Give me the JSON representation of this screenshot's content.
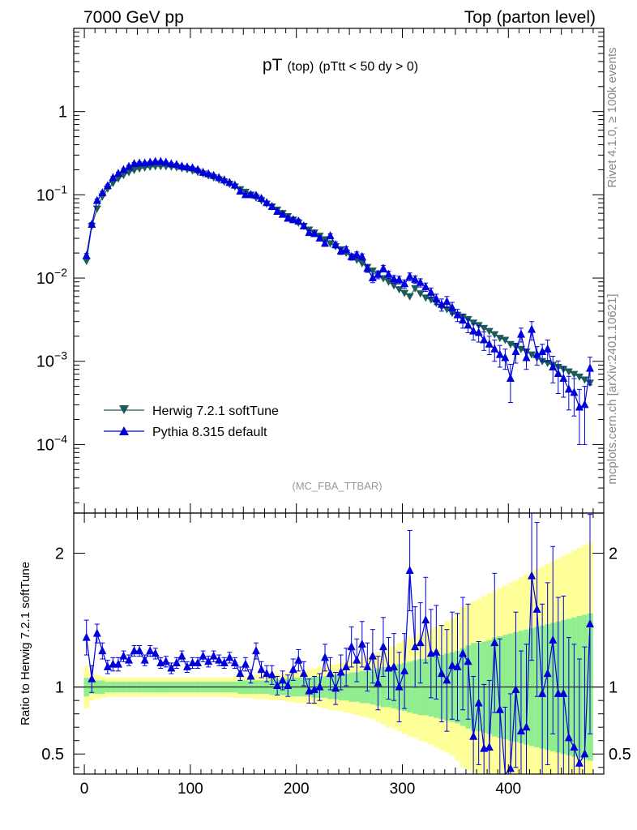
{
  "header": {
    "left": "7000 GeV pp",
    "right": "Top (parton level)"
  },
  "title": {
    "main": "pT",
    "sub": "(top)",
    "cut": "(pTtt < 50 dy > 0)"
  },
  "side_labels": {
    "rivet": "Rivet 4.1.0, ≥ 100k events",
    "mcplots": "mcplots.cern.ch [arXiv:2401.10621]"
  },
  "analysis_tag": "(MC_FBA_TTBAR)",
  "ratio_ylabel": "Ratio to Herwig 7.2.1 softTune",
  "colors": {
    "herwig": "#1d5b5b",
    "pythia": "#0000dd",
    "band_inner": "#90ee90",
    "band_outer": "#ffff99"
  },
  "chart_data": [
    {
      "type": "line",
      "scale": "log",
      "x": [
        2,
        7,
        12,
        17,
        22,
        27,
        32,
        37,
        42,
        47,
        52,
        57,
        62,
        67,
        72,
        77,
        82,
        87,
        92,
        97,
        102,
        107,
        112,
        117,
        122,
        127,
        132,
        137,
        142,
        147,
        152,
        157,
        162,
        167,
        172,
        177,
        182,
        187,
        192,
        197,
        202,
        207,
        212,
        217,
        222,
        227,
        232,
        237,
        242,
        247,
        252,
        257,
        262,
        267,
        272,
        277,
        282,
        287,
        292,
        297,
        302,
        307,
        312,
        317,
        322,
        327,
        332,
        337,
        342,
        347,
        352,
        357,
        362,
        367,
        372,
        377,
        382,
        387,
        392,
        397,
        402,
        407,
        412,
        417,
        422,
        427,
        432,
        437,
        442,
        447,
        452,
        457,
        462,
        467,
        472,
        477
      ],
      "series": [
        {
          "name": "Herwig 7.2.1 softTune",
          "values": [
            0.016,
            0.042,
            0.068,
            0.095,
            0.118,
            0.138,
            0.156,
            0.172,
            0.186,
            0.198,
            0.206,
            0.212,
            0.216,
            0.219,
            0.22,
            0.219,
            0.217,
            0.213,
            0.208,
            0.202,
            0.195,
            0.187,
            0.179,
            0.17,
            0.161,
            0.152,
            0.143,
            0.134,
            0.125,
            0.116,
            0.108,
            0.1,
            0.092,
            0.085,
            0.078,
            0.072,
            0.066,
            0.06,
            0.055,
            0.05,
            0.046,
            0.042,
            0.038,
            0.035,
            0.032,
            0.029,
            0.026,
            0.024,
            0.022,
            0.02,
            0.018,
            0.0165,
            0.015,
            0.0135,
            0.0122,
            0.011,
            0.0099,
            0.009,
            0.0081,
            0.0073,
            0.0066,
            0.006,
            0.0075,
            0.0065,
            0.0058,
            0.0055,
            0.005,
            0.0045,
            0.0042,
            0.0038,
            0.0036,
            0.0034,
            0.0032,
            0.0029,
            0.0027,
            0.0025,
            0.0023,
            0.0021,
            0.0019,
            0.0018,
            0.0016,
            0.0015,
            0.0014,
            0.0013,
            0.0012,
            0.0011,
            0.001,
            0.00095,
            0.0009,
            0.00085,
            0.0008,
            0.00075,
            0.0007,
            0.00065,
            0.0006,
            0.00055
          ],
          "errors": []
        },
        {
          "name": "Pythia 8.315 default",
          "values": [
            0.0185,
            0.044,
            0.085,
            0.105,
            0.128,
            0.16,
            0.18,
            0.2,
            0.218,
            0.236,
            0.24,
            0.24,
            0.245,
            0.25,
            0.25,
            0.245,
            0.235,
            0.23,
            0.22,
            0.215,
            0.21,
            0.2,
            0.185,
            0.178,
            0.17,
            0.16,
            0.15,
            0.14,
            0.13,
            0.11,
            0.1,
            0.1,
            0.098,
            0.09,
            0.08,
            0.072,
            0.063,
            0.058,
            0.052,
            0.05,
            0.048,
            0.042,
            0.035,
            0.034,
            0.03,
            0.026,
            0.032,
            0.025,
            0.021,
            0.022,
            0.018,
            0.019,
            0.018,
            0.013,
            0.01,
            0.011,
            0.013,
            0.011,
            0.0097,
            0.0095,
            0.0085,
            0.0104,
            0.0096,
            0.0088,
            0.0078,
            0.0067,
            0.0056,
            0.0048,
            0.0052,
            0.0044,
            0.0036,
            0.0031,
            0.0027,
            0.0023,
            0.0022,
            0.0018,
            0.0016,
            0.0014,
            0.0012,
            0.0011,
            0.00062,
            0.0013,
            0.0021,
            0.0011,
            0.0024,
            0.0012,
            0.0013,
            0.0014,
            0.00085,
            0.00071,
            0.00062,
            0.00046,
            0.00042,
            0.00028,
            0.0003,
            0.00082
          ],
          "errors": [
            0.0012,
            0.0025,
            0.004,
            0.005,
            0.005,
            0.006,
            0.007,
            0.007,
            0.008,
            0.008,
            0.008,
            0.008,
            0.008,
            0.008,
            0.008,
            0.008,
            0.008,
            0.008,
            0.007,
            0.007,
            0.007,
            0.007,
            0.007,
            0.006,
            0.006,
            0.006,
            0.006,
            0.006,
            0.005,
            0.005,
            0.005,
            0.005,
            0.005,
            0.004,
            0.004,
            0.004,
            0.004,
            0.003,
            0.003,
            0.003,
            0.003,
            0.003,
            0.002,
            0.002,
            0.002,
            0.002,
            0.002,
            0.002,
            0.0018,
            0.0018,
            0.0016,
            0.0016,
            0.0015,
            0.0013,
            0.0012,
            0.0012,
            0.0012,
            0.0011,
            0.001,
            0.001,
            0.001,
            0.0011,
            0.001,
            0.001,
            0.0009,
            0.0009,
            0.0008,
            0.0008,
            0.0008,
            0.0007,
            0.0006,
            0.0006,
            0.0005,
            0.0005,
            0.0005,
            0.00045,
            0.0004,
            0.0004,
            0.00035,
            0.0003,
            0.0003,
            0.00035,
            0.0004,
            0.0003,
            0.0006,
            0.0003,
            0.0003,
            0.0004,
            0.0003,
            0.0003,
            0.00025,
            0.0002,
            0.0002,
            0.00018,
            0.0002,
            0.0003
          ]
        }
      ],
      "xlim": [
        -10,
        490
      ],
      "ylim": [
        1.5e-05,
        10
      ],
      "y_ticks": [
        "10^-4",
        "10^-3",
        "10^-2",
        "10^-1",
        "1"
      ],
      "legend": "lower-left"
    },
    {
      "type": "line",
      "scale": "linear",
      "x": [
        2,
        7,
        12,
        17,
        22,
        27,
        32,
        37,
        42,
        47,
        52,
        57,
        62,
        67,
        72,
        77,
        82,
        87,
        92,
        97,
        102,
        107,
        112,
        117,
        122,
        127,
        132,
        137,
        142,
        147,
        152,
        157,
        162,
        167,
        172,
        177,
        182,
        187,
        192,
        197,
        202,
        207,
        212,
        217,
        222,
        227,
        232,
        237,
        242,
        247,
        252,
        257,
        262,
        267,
        272,
        277,
        282,
        287,
        292,
        297,
        302,
        307,
        312,
        317,
        322,
        327,
        332,
        337,
        342,
        347,
        352,
        357,
        362,
        367,
        372,
        377,
        382,
        387,
        392,
        397,
        402,
        407,
        412,
        417,
        422,
        427,
        432,
        437,
        442,
        447,
        452,
        457,
        462,
        467,
        472,
        477
      ],
      "series": [
        {
          "name": "Pythia 8.315 default / Herwig 7.2.1 softTune",
          "values": [
            1.37,
            1.06,
            1.4,
            1.27,
            1.15,
            1.17,
            1.17,
            1.23,
            1.2,
            1.27,
            1.27,
            1.2,
            1.27,
            1.25,
            1.18,
            1.19,
            1.14,
            1.18,
            1.23,
            1.15,
            1.18,
            1.18,
            1.23,
            1.19,
            1.23,
            1.2,
            1.18,
            1.22,
            1.18,
            1.1,
            1.17,
            1.08,
            1.27,
            1.13,
            1.1,
            1.09,
            1.01,
            1.05,
            1.01,
            1.13,
            1.2,
            1.1,
            0.97,
            0.98,
            1.0,
            1.22,
            1.1,
            0.99,
            1.11,
            1.15,
            1.3,
            1.2,
            1.32,
            1.15,
            1.23,
            1.03,
            1.3,
            1.14,
            1.15,
            1.0,
            1.12,
            1.87,
            1.3,
            1.33,
            1.5,
            1.25,
            1.26,
            1.1,
            1.05,
            1.16,
            1.15,
            1.25,
            1.19,
            0.63,
            0.88,
            0.54,
            0.55,
            1.33,
            0.83,
            0.3,
            0.39,
            0.98,
            0.67,
            0.7,
            1.83,
            1.58,
            0.95,
            1.1,
            1.35,
            0.95,
            0.95,
            0.62,
            0.55,
            0.43,
            0.5,
            1.47
          ],
          "errors": [
            0.13,
            0.1,
            0.07,
            0.06,
            0.05,
            0.05,
            0.05,
            0.04,
            0.04,
            0.04,
            0.04,
            0.04,
            0.04,
            0.04,
            0.04,
            0.04,
            0.04,
            0.04,
            0.04,
            0.04,
            0.04,
            0.04,
            0.04,
            0.04,
            0.04,
            0.04,
            0.04,
            0.04,
            0.04,
            0.05,
            0.05,
            0.05,
            0.06,
            0.06,
            0.06,
            0.07,
            0.07,
            0.07,
            0.08,
            0.08,
            0.08,
            0.09,
            0.09,
            0.1,
            0.1,
            0.1,
            0.12,
            0.12,
            0.13,
            0.14,
            0.15,
            0.16,
            0.17,
            0.18,
            0.2,
            0.2,
            0.22,
            0.23,
            0.25,
            0.26,
            0.28,
            0.3,
            0.3,
            0.3,
            0.32,
            0.33,
            0.35,
            0.36,
            0.38,
            0.4,
            0.4,
            0.42,
            0.43,
            0.45,
            0.46,
            0.48,
            0.5,
            0.52,
            0.53,
            0.55,
            0.56,
            0.58,
            0.6,
            0.62,
            0.63,
            0.65,
            0.67,
            0.68,
            0.7,
            0.72,
            0.73,
            0.75,
            0.77,
            0.78,
            0.8,
            0.82
          ]
        }
      ],
      "band_inner": [
        0.07,
        0.05,
        0.05,
        0.05,
        0.04,
        0.04,
        0.04,
        0.04,
        0.04,
        0.04,
        0.04,
        0.04,
        0.04,
        0.04,
        0.04,
        0.04,
        0.04,
        0.04,
        0.04,
        0.04,
        0.04,
        0.04,
        0.04,
        0.04,
        0.04,
        0.04,
        0.04,
        0.04,
        0.04,
        0.05,
        0.05,
        0.05,
        0.05,
        0.05,
        0.05,
        0.06,
        0.06,
        0.06,
        0.06,
        0.07,
        0.07,
        0.07,
        0.07,
        0.08,
        0.08,
        0.08,
        0.09,
        0.09,
        0.1,
        0.1,
        0.11,
        0.11,
        0.12,
        0.12,
        0.13,
        0.14,
        0.15,
        0.15,
        0.16,
        0.17,
        0.18,
        0.19,
        0.2,
        0.21,
        0.21,
        0.22,
        0.23,
        0.24,
        0.25,
        0.26,
        0.27,
        0.29,
        0.31,
        0.33,
        0.33,
        0.34,
        0.35,
        0.37,
        0.38,
        0.39,
        0.4,
        0.41,
        0.42,
        0.43,
        0.44,
        0.45,
        0.46,
        0.47,
        0.48,
        0.49,
        0.5,
        0.51,
        0.52,
        0.53,
        0.54,
        0.55
      ],
      "band_outer": [
        0.16,
        0.1,
        0.09,
        0.08,
        0.07,
        0.07,
        0.07,
        0.07,
        0.07,
        0.07,
        0.07,
        0.07,
        0.07,
        0.07,
        0.07,
        0.07,
        0.07,
        0.07,
        0.07,
        0.07,
        0.07,
        0.07,
        0.07,
        0.07,
        0.07,
        0.07,
        0.07,
        0.07,
        0.08,
        0.08,
        0.08,
        0.08,
        0.09,
        0.09,
        0.09,
        0.1,
        0.1,
        0.1,
        0.11,
        0.11,
        0.12,
        0.12,
        0.13,
        0.14,
        0.15,
        0.16,
        0.17,
        0.17,
        0.18,
        0.19,
        0.2,
        0.21,
        0.22,
        0.23,
        0.24,
        0.26,
        0.28,
        0.3,
        0.31,
        0.33,
        0.35,
        0.37,
        0.38,
        0.4,
        0.41,
        0.43,
        0.45,
        0.47,
        0.49,
        0.51,
        0.55,
        0.6,
        0.62,
        0.64,
        0.66,
        0.68,
        0.7,
        0.72,
        0.74,
        0.76,
        0.78,
        0.8,
        0.82,
        0.84,
        0.86,
        0.88,
        0.9,
        0.92,
        0.94,
        0.96,
        0.98,
        1.0,
        1.02,
        1.04,
        1.06,
        1.08
      ],
      "xlim": [
        -10,
        490
      ],
      "ylim": [
        0.35,
        2.3
      ],
      "y_ticks": [
        "0.5",
        "1",
        "2"
      ],
      "x_ticks": [
        "0",
        "100",
        "200",
        "300",
        "400"
      ],
      "ylabel": "Ratio to Herwig 7.2.1 softTune",
      "reference_line": 1
    }
  ]
}
